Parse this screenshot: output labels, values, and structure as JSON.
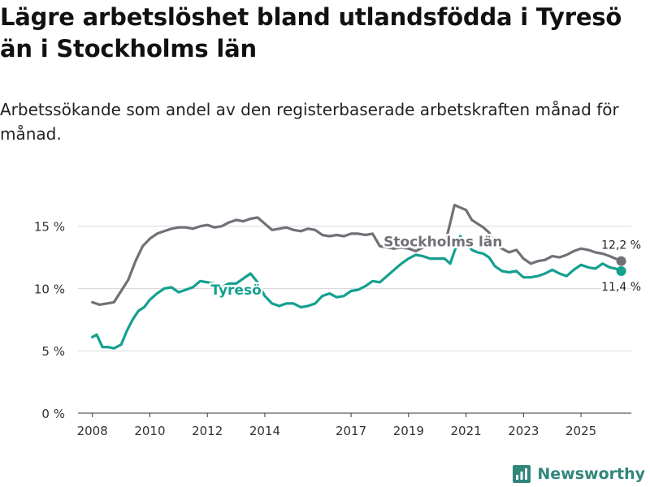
{
  "title": "Lägre arbetslöshet bland utlandsfödda i Tyresö än i Stockholms län",
  "subtitle": "Arbetssökande som andel av den registerbaserade arbetskraften månad för månad.",
  "brand": {
    "name": "Newsworthy",
    "icon": "newsworthy-logo-icon",
    "color": "#31867a"
  },
  "chart_data": {
    "type": "line",
    "title": "Lägre arbetslöshet bland utlandsfödda i Tyresö än i Stockholms län",
    "xlabel": "",
    "ylabel": "",
    "xlim": [
      2007.5,
      2026.75
    ],
    "ylim": [
      0,
      17
    ],
    "grid": true,
    "x_ticks": [
      {
        "value": 2008,
        "label": "2008"
      },
      {
        "value": 2010,
        "label": "2010"
      },
      {
        "value": 2012,
        "label": "2012"
      },
      {
        "value": 2014,
        "label": "2014"
      },
      {
        "value": 2017,
        "label": "2017"
      },
      {
        "value": 2019,
        "label": "2019"
      },
      {
        "value": 2021,
        "label": "2021"
      },
      {
        "value": 2023,
        "label": "2023"
      },
      {
        "value": 2025,
        "label": "2025"
      }
    ],
    "y_ticks": [
      {
        "value": 0,
        "label": "0 %"
      },
      {
        "value": 5,
        "label": "5 %"
      },
      {
        "value": 10,
        "label": "10 %"
      },
      {
        "value": 15,
        "label": "15 %"
      }
    ],
    "series": [
      {
        "name": "Stockholms län",
        "color": "#727077",
        "label_x": 2020.2,
        "label_y": 13.4,
        "end_label": "12,2 %",
        "end": [
          2026.4,
          12.2
        ],
        "points": [
          [
            2008.0,
            8.9
          ],
          [
            2008.25,
            8.7
          ],
          [
            2008.5,
            8.8
          ],
          [
            2008.75,
            8.9
          ],
          [
            2009.0,
            9.8
          ],
          [
            2009.25,
            10.7
          ],
          [
            2009.5,
            12.2
          ],
          [
            2009.75,
            13.4
          ],
          [
            2010.0,
            14.0
          ],
          [
            2010.25,
            14.4
          ],
          [
            2010.5,
            14.6
          ],
          [
            2010.75,
            14.8
          ],
          [
            2011.0,
            14.9
          ],
          [
            2011.25,
            14.9
          ],
          [
            2011.5,
            14.8
          ],
          [
            2011.75,
            15.0
          ],
          [
            2012.0,
            15.1
          ],
          [
            2012.25,
            14.9
          ],
          [
            2012.5,
            15.0
          ],
          [
            2012.75,
            15.3
          ],
          [
            2013.0,
            15.5
          ],
          [
            2013.25,
            15.4
          ],
          [
            2013.5,
            15.6
          ],
          [
            2013.75,
            15.7
          ],
          [
            2014.0,
            15.2
          ],
          [
            2014.25,
            14.7
          ],
          [
            2014.5,
            14.8
          ],
          [
            2014.75,
            14.9
          ],
          [
            2015.0,
            14.7
          ],
          [
            2015.25,
            14.6
          ],
          [
            2015.5,
            14.8
          ],
          [
            2015.75,
            14.7
          ],
          [
            2016.0,
            14.3
          ],
          [
            2016.25,
            14.2
          ],
          [
            2016.5,
            14.3
          ],
          [
            2016.75,
            14.2
          ],
          [
            2017.0,
            14.4
          ],
          [
            2017.25,
            14.4
          ],
          [
            2017.5,
            14.3
          ],
          [
            2017.75,
            14.4
          ],
          [
            2018.0,
            13.4
          ],
          [
            2018.25,
            13.3
          ],
          [
            2018.5,
            13.2
          ],
          [
            2018.75,
            13.3
          ],
          [
            2019.0,
            13.2
          ],
          [
            2019.25,
            13.0
          ],
          [
            2019.5,
            13.3
          ],
          [
            2019.75,
            13.5
          ],
          [
            2020.0,
            13.5
          ],
          [
            2020.25,
            13.5
          ],
          [
            2020.4,
            14.8
          ],
          [
            2020.6,
            16.7
          ],
          [
            2020.8,
            16.5
          ],
          [
            2021.0,
            16.3
          ],
          [
            2021.2,
            15.5
          ],
          [
            2021.4,
            15.2
          ],
          [
            2021.6,
            14.9
          ],
          [
            2021.8,
            14.5
          ],
          [
            2022.0,
            13.6
          ],
          [
            2022.25,
            13.2
          ],
          [
            2022.5,
            12.9
          ],
          [
            2022.75,
            13.1
          ],
          [
            2023.0,
            12.4
          ],
          [
            2023.25,
            12.0
          ],
          [
            2023.5,
            12.2
          ],
          [
            2023.75,
            12.3
          ],
          [
            2024.0,
            12.6
          ],
          [
            2024.25,
            12.5
          ],
          [
            2024.5,
            12.7
          ],
          [
            2024.75,
            13.0
          ],
          [
            2025.0,
            13.2
          ],
          [
            2025.25,
            13.1
          ],
          [
            2025.5,
            12.9
          ],
          [
            2025.75,
            12.8
          ],
          [
            2026.0,
            12.6
          ],
          [
            2026.2,
            12.4
          ],
          [
            2026.4,
            12.2
          ]
        ]
      },
      {
        "name": "Tyresö",
        "color": "#13a08f",
        "label_x": 2013.0,
        "label_y": 9.5,
        "end_label": "11,4 %",
        "end": [
          2026.4,
          11.4
        ],
        "points": [
          [
            2008.0,
            6.1
          ],
          [
            2008.15,
            6.3
          ],
          [
            2008.35,
            5.3
          ],
          [
            2008.55,
            5.3
          ],
          [
            2008.75,
            5.2
          ],
          [
            2009.0,
            5.5
          ],
          [
            2009.2,
            6.6
          ],
          [
            2009.4,
            7.5
          ],
          [
            2009.6,
            8.2
          ],
          [
            2009.8,
            8.5
          ],
          [
            2010.0,
            9.1
          ],
          [
            2010.25,
            9.6
          ],
          [
            2010.5,
            10.0
          ],
          [
            2010.75,
            10.1
          ],
          [
            2011.0,
            9.7
          ],
          [
            2011.25,
            9.9
          ],
          [
            2011.5,
            10.1
          ],
          [
            2011.75,
            10.6
          ],
          [
            2012.0,
            10.5
          ],
          [
            2012.25,
            10.4
          ],
          [
            2012.5,
            10.1
          ],
          [
            2012.75,
            10.4
          ],
          [
            2013.0,
            10.4
          ],
          [
            2013.25,
            10.8
          ],
          [
            2013.5,
            11.2
          ],
          [
            2013.75,
            10.5
          ],
          [
            2014.0,
            9.4
          ],
          [
            2014.25,
            8.8
          ],
          [
            2014.5,
            8.6
          ],
          [
            2014.75,
            8.8
          ],
          [
            2015.0,
            8.8
          ],
          [
            2015.25,
            8.5
          ],
          [
            2015.5,
            8.6
          ],
          [
            2015.75,
            8.8
          ],
          [
            2016.0,
            9.4
          ],
          [
            2016.25,
            9.6
          ],
          [
            2016.5,
            9.3
          ],
          [
            2016.75,
            9.4
          ],
          [
            2017.0,
            9.8
          ],
          [
            2017.25,
            9.9
          ],
          [
            2017.5,
            10.2
          ],
          [
            2017.75,
            10.6
          ],
          [
            2018.0,
            10.5
          ],
          [
            2018.25,
            11.0
          ],
          [
            2018.5,
            11.5
          ],
          [
            2018.75,
            12.0
          ],
          [
            2019.0,
            12.4
          ],
          [
            2019.25,
            12.7
          ],
          [
            2019.5,
            12.6
          ],
          [
            2019.75,
            12.4
          ],
          [
            2020.0,
            12.4
          ],
          [
            2020.25,
            12.4
          ],
          [
            2020.45,
            12.0
          ],
          [
            2020.6,
            13.0
          ],
          [
            2020.8,
            14.2
          ],
          [
            2021.0,
            13.8
          ],
          [
            2021.2,
            13.1
          ],
          [
            2021.4,
            12.9
          ],
          [
            2021.6,
            12.8
          ],
          [
            2021.8,
            12.5
          ],
          [
            2022.0,
            11.8
          ],
          [
            2022.25,
            11.4
          ],
          [
            2022.5,
            11.3
          ],
          [
            2022.75,
            11.4
          ],
          [
            2023.0,
            10.9
          ],
          [
            2023.25,
            10.9
          ],
          [
            2023.5,
            11.0
          ],
          [
            2023.75,
            11.2
          ],
          [
            2024.0,
            11.5
          ],
          [
            2024.25,
            11.2
          ],
          [
            2024.5,
            11.0
          ],
          [
            2024.75,
            11.5
          ],
          [
            2025.0,
            11.9
          ],
          [
            2025.25,
            11.7
          ],
          [
            2025.5,
            11.6
          ],
          [
            2025.75,
            12.0
          ],
          [
            2026.0,
            11.7
          ],
          [
            2026.2,
            11.6
          ],
          [
            2026.4,
            11.4
          ]
        ]
      }
    ]
  }
}
